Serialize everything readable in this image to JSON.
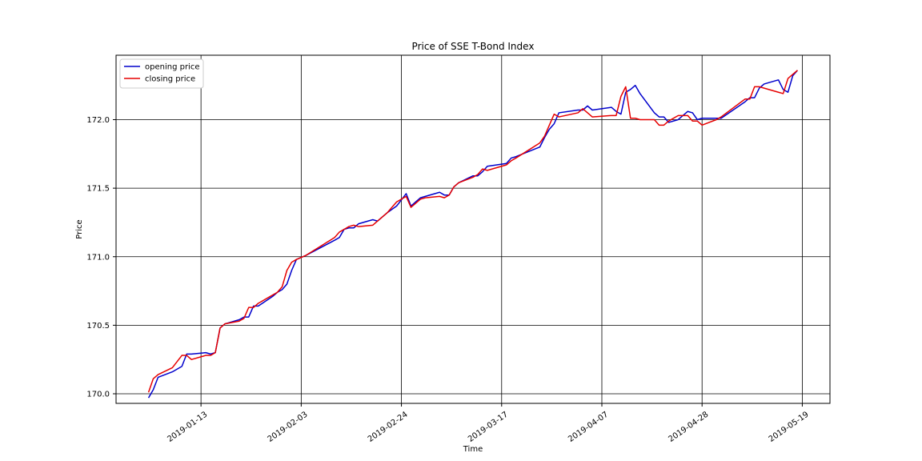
{
  "chart_data": {
    "type": "line",
    "title": "Price of SSE T-Bond Index",
    "xlabel": "Time",
    "ylabel": "Price",
    "x_tick_labels": [
      "2019-01-13",
      "2019-02-03",
      "2019-02-24",
      "2019-03-17",
      "2019-04-07",
      "2019-04-28",
      "2019-05-19"
    ],
    "y_tick_labels": [
      "170.0",
      "170.5",
      "171.0",
      "171.5",
      "172.0"
    ],
    "yticks": [
      170.0,
      170.5,
      171.0,
      171.5,
      172.0
    ],
    "xlim": [
      "2019-12-27",
      "2019-05-24"
    ],
    "ylim": [
      169.93,
      172.47
    ],
    "grid": true,
    "legend_position": "top-left",
    "series": [
      {
        "name": "opening price",
        "color": "#0000cc",
        "points": [
          [
            "2019-01-02",
            169.97
          ],
          [
            "2019-01-03",
            170.03
          ],
          [
            "2019-01-04",
            170.12
          ],
          [
            "2019-01-07",
            170.16
          ],
          [
            "2019-01-09",
            170.2
          ],
          [
            "2019-01-10",
            170.29
          ],
          [
            "2019-01-11",
            170.29
          ],
          [
            "2019-01-14",
            170.3
          ],
          [
            "2019-01-15",
            170.29
          ],
          [
            "2019-01-16",
            170.3
          ],
          [
            "2019-01-17",
            170.48
          ],
          [
            "2019-01-18",
            170.51
          ],
          [
            "2019-01-21",
            170.54
          ],
          [
            "2019-01-22",
            170.56
          ],
          [
            "2019-01-23",
            170.56
          ],
          [
            "2019-01-24",
            170.64
          ],
          [
            "2019-01-25",
            170.64
          ],
          [
            "2019-01-28",
            170.71
          ],
          [
            "2019-01-29",
            170.74
          ],
          [
            "2019-01-30",
            170.76
          ],
          [
            "2019-01-31",
            170.8
          ],
          [
            "2019-02-01",
            170.9
          ],
          [
            "2019-02-02",
            170.98
          ],
          [
            "2019-02-04",
            171.01
          ],
          [
            "2019-02-10",
            171.12
          ],
          [
            "2019-02-11",
            171.14
          ],
          [
            "2019-02-12",
            171.2
          ],
          [
            "2019-02-13",
            171.21
          ],
          [
            "2019-02-14",
            171.21
          ],
          [
            "2019-02-15",
            171.24
          ],
          [
            "2019-02-18",
            171.27
          ],
          [
            "2019-02-19",
            171.26
          ],
          [
            "2019-02-21",
            171.32
          ],
          [
            "2019-02-23",
            171.37
          ],
          [
            "2019-02-25",
            171.46
          ],
          [
            "2019-02-26",
            171.37
          ],
          [
            "2019-02-27",
            171.4
          ],
          [
            "2019-02-28",
            171.43
          ],
          [
            "2019-03-01",
            171.44
          ],
          [
            "2019-03-04",
            171.47
          ],
          [
            "2019-03-05",
            171.45
          ],
          [
            "2019-03-06",
            171.45
          ],
          [
            "2019-03-07",
            171.51
          ],
          [
            "2019-03-08",
            171.54
          ],
          [
            "2019-03-11",
            171.59
          ],
          [
            "2019-03-12",
            171.59
          ],
          [
            "2019-03-13",
            171.62
          ],
          [
            "2019-03-14",
            171.66
          ],
          [
            "2019-03-18",
            171.68
          ],
          [
            "2019-03-19",
            171.72
          ],
          [
            "2019-03-20",
            171.73
          ],
          [
            "2019-03-25",
            171.8
          ],
          [
            "2019-03-26",
            171.87
          ],
          [
            "2019-03-27",
            171.93
          ],
          [
            "2019-03-28",
            171.97
          ],
          [
            "2019-03-29",
            172.05
          ],
          [
            "2019-04-02",
            172.07
          ],
          [
            "2019-04-03",
            172.07
          ],
          [
            "2019-04-04",
            172.1
          ],
          [
            "2019-04-05",
            172.07
          ],
          [
            "2019-04-09",
            172.09
          ],
          [
            "2019-04-10",
            172.06
          ],
          [
            "2019-04-11",
            172.04
          ],
          [
            "2019-04-12",
            172.2
          ],
          [
            "2019-04-13",
            172.22
          ],
          [
            "2019-04-14",
            172.25
          ],
          [
            "2019-04-15",
            172.19
          ],
          [
            "2019-04-18",
            172.05
          ],
          [
            "2019-04-19",
            172.02
          ],
          [
            "2019-04-20",
            172.02
          ],
          [
            "2019-04-21",
            171.98
          ],
          [
            "2019-04-23",
            172.0
          ],
          [
            "2019-04-25",
            172.06
          ],
          [
            "2019-04-26",
            172.05
          ],
          [
            "2019-04-27",
            172.0
          ],
          [
            "2019-04-28",
            172.01
          ],
          [
            "2019-05-01",
            172.01
          ],
          [
            "2019-05-02",
            172.01
          ],
          [
            "2019-05-07",
            172.13
          ],
          [
            "2019-05-08",
            172.16
          ],
          [
            "2019-05-09",
            172.16
          ],
          [
            "2019-05-10",
            172.23
          ],
          [
            "2019-05-11",
            172.26
          ],
          [
            "2019-05-14",
            172.29
          ],
          [
            "2019-05-15",
            172.22
          ],
          [
            "2019-05-16",
            172.2
          ],
          [
            "2019-05-17",
            172.32
          ],
          [
            "2019-05-18",
            172.36
          ]
        ]
      },
      {
        "name": "closing price",
        "color": "#e60000",
        "points": [
          [
            "2019-01-02",
            170.01
          ],
          [
            "2019-01-03",
            170.11
          ],
          [
            "2019-01-04",
            170.14
          ],
          [
            "2019-01-07",
            170.19
          ],
          [
            "2019-01-09",
            170.28
          ],
          [
            "2019-01-10",
            170.28
          ],
          [
            "2019-01-11",
            170.25
          ],
          [
            "2019-01-14",
            170.28
          ],
          [
            "2019-01-15",
            170.28
          ],
          [
            "2019-01-16",
            170.3
          ],
          [
            "2019-01-17",
            170.48
          ],
          [
            "2019-01-18",
            170.51
          ],
          [
            "2019-01-21",
            170.53
          ],
          [
            "2019-01-22",
            170.55
          ],
          [
            "2019-01-23",
            170.63
          ],
          [
            "2019-01-24",
            170.63
          ],
          [
            "2019-01-25",
            170.66
          ],
          [
            "2019-01-28",
            170.72
          ],
          [
            "2019-01-29",
            170.74
          ],
          [
            "2019-01-30",
            170.78
          ],
          [
            "2019-01-31",
            170.9
          ],
          [
            "2019-02-01",
            170.96
          ],
          [
            "2019-02-02",
            170.98
          ],
          [
            "2019-02-04",
            171.01
          ],
          [
            "2019-02-10",
            171.14
          ],
          [
            "2019-02-11",
            171.18
          ],
          [
            "2019-02-12",
            171.2
          ],
          [
            "2019-02-13",
            171.22
          ],
          [
            "2019-02-14",
            171.23
          ],
          [
            "2019-02-15",
            171.22
          ],
          [
            "2019-02-18",
            171.23
          ],
          [
            "2019-02-19",
            171.26
          ],
          [
            "2019-02-21",
            171.32
          ],
          [
            "2019-02-23",
            171.4
          ],
          [
            "2019-02-25",
            171.44
          ],
          [
            "2019-02-26",
            171.36
          ],
          [
            "2019-02-27",
            171.39
          ],
          [
            "2019-02-28",
            171.42
          ],
          [
            "2019-03-01",
            171.43
          ],
          [
            "2019-03-04",
            171.44
          ],
          [
            "2019-03-05",
            171.43
          ],
          [
            "2019-03-06",
            171.45
          ],
          [
            "2019-03-07",
            171.51
          ],
          [
            "2019-03-08",
            171.54
          ],
          [
            "2019-03-11",
            171.58
          ],
          [
            "2019-03-12",
            171.6
          ],
          [
            "2019-03-13",
            171.64
          ],
          [
            "2019-03-14",
            171.63
          ],
          [
            "2019-03-18",
            171.67
          ],
          [
            "2019-03-19",
            171.7
          ],
          [
            "2019-03-20",
            171.72
          ],
          [
            "2019-03-25",
            171.83
          ],
          [
            "2019-03-26",
            171.88
          ],
          [
            "2019-03-27",
            171.96
          ],
          [
            "2019-03-28",
            172.04
          ],
          [
            "2019-03-29",
            172.02
          ],
          [
            "2019-04-02",
            172.05
          ],
          [
            "2019-04-03",
            172.08
          ],
          [
            "2019-04-04",
            172.05
          ],
          [
            "2019-04-05",
            172.02
          ],
          [
            "2019-04-09",
            172.03
          ],
          [
            "2019-04-10",
            172.03
          ],
          [
            "2019-04-11",
            172.17
          ],
          [
            "2019-04-12",
            172.24
          ],
          [
            "2019-04-13",
            172.01
          ],
          [
            "2019-04-14",
            172.01
          ],
          [
            "2019-04-15",
            172.0
          ],
          [
            "2019-04-18",
            172.0
          ],
          [
            "2019-04-19",
            171.96
          ],
          [
            "2019-04-20",
            171.96
          ],
          [
            "2019-04-21",
            171.99
          ],
          [
            "2019-04-23",
            172.03
          ],
          [
            "2019-04-25",
            172.03
          ],
          [
            "2019-04-26",
            171.99
          ],
          [
            "2019-04-27",
            171.99
          ],
          [
            "2019-04-28",
            171.96
          ],
          [
            "2019-05-01",
            172.0
          ],
          [
            "2019-05-02",
            172.02
          ],
          [
            "2019-05-07",
            172.15
          ],
          [
            "2019-05-08",
            172.15
          ],
          [
            "2019-05-09",
            172.24
          ],
          [
            "2019-05-10",
            172.24
          ],
          [
            "2019-05-11",
            172.23
          ],
          [
            "2019-05-14",
            172.2
          ],
          [
            "2019-05-15",
            172.19
          ],
          [
            "2019-05-16",
            172.3
          ],
          [
            "2019-05-17",
            172.33
          ],
          [
            "2019-05-18",
            172.36
          ]
        ]
      }
    ]
  }
}
